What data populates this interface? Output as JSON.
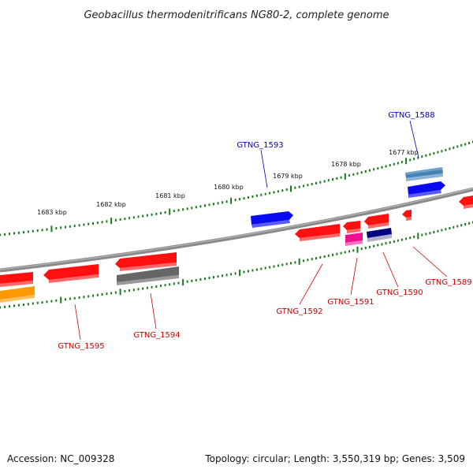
{
  "title": "Geobacillus thermodenitrificans NG80-2, complete genome",
  "footer": {
    "accession": "Accession: NC_009328",
    "topology": "Topology: circular; Length: 3,550,319 bp; Genes: 3,509"
  },
  "scale_labels": [
    "1677 kbp",
    "1678 kbp",
    "1679 kbp",
    "1680 kbp",
    "1681 kbp",
    "1682 kbp",
    "1683 kbp"
  ],
  "gene_labels": {
    "forward": [
      "GTNG_1588",
      "GTNG_1593"
    ],
    "reverse": [
      "GTNG_1589",
      "GTNG_1590",
      "GTNG_1591",
      "GTNG_1592",
      "GTNG_1594",
      "GTNG_1595"
    ]
  },
  "colors": {
    "backbone": "#888888",
    "scale_ticks": "#1a7a1a",
    "red_gene": "#ff1010",
    "blue_gene": "#0a0af0",
    "steel_gene": "#4682b4",
    "gray_gene": "#666666",
    "magenta_gene": "#ee1090",
    "navy_gene": "#000080",
    "orange_gene": "#ff9900",
    "label_forward": "#0000bb",
    "label_reverse": "#cc0000"
  }
}
